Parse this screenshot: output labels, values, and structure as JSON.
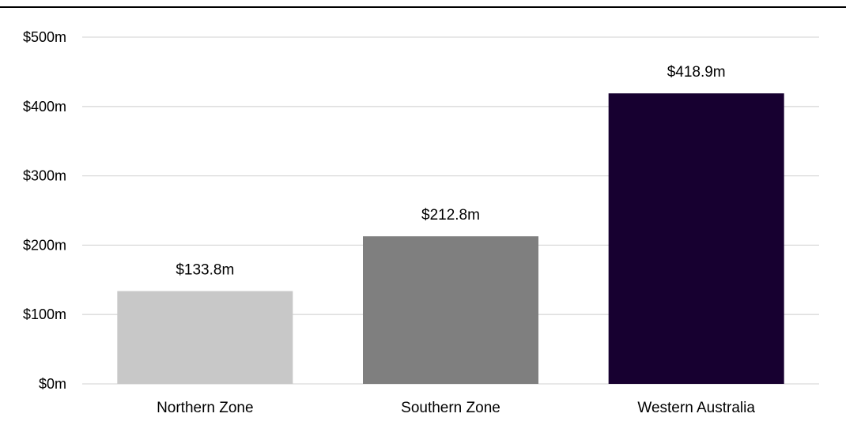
{
  "chart_data": {
    "type": "bar",
    "title": "",
    "xlabel": "",
    "ylabel": "",
    "categories": [
      "Northern Zone",
      "Southern Zone",
      "Western Australia"
    ],
    "values": [
      133.8,
      212.8,
      418.9
    ],
    "data_labels": [
      "$133.8m",
      "$212.8m",
      "$418.9m"
    ],
    "bar_colors": [
      "#c8c8c8",
      "#7f7f7f",
      "#170030"
    ],
    "ylim": [
      0,
      500
    ],
    "y_ticks": [
      0,
      100,
      200,
      300,
      400,
      500
    ],
    "y_tick_labels": [
      "$0m",
      "$100m",
      "$200m",
      "$300m",
      "$400m",
      "$500m"
    ],
    "grid": true,
    "grid_color": "#d9d9d9",
    "legend": "none"
  }
}
